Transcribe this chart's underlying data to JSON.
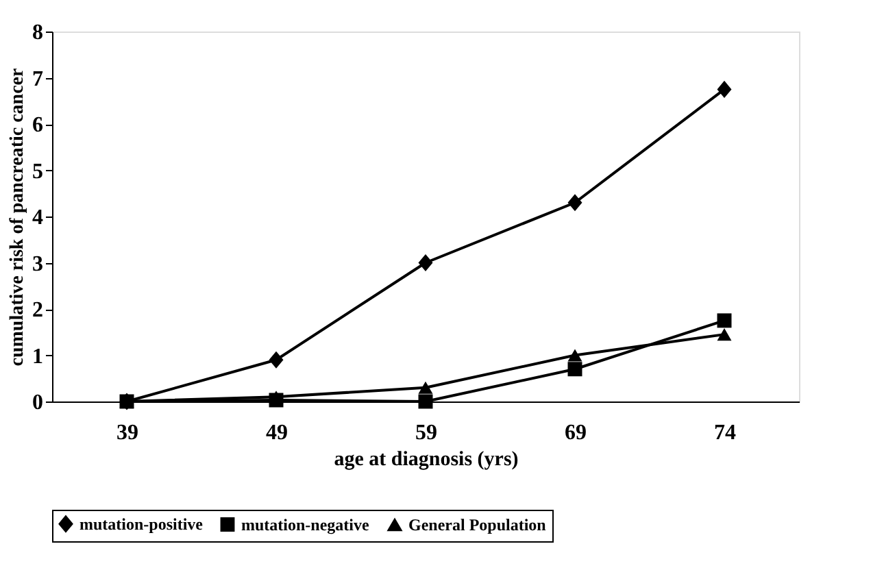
{
  "chart_data": {
    "type": "line",
    "xlabel": "age at diagnosis (yrs)",
    "ylabel": "cumulative risk of pancreatic cancer",
    "categories": [
      "39",
      "49",
      "59",
      "69",
      "74"
    ],
    "ylim": [
      0,
      8
    ],
    "yticks": [
      0,
      1,
      2,
      3,
      4,
      5,
      6,
      7,
      8
    ],
    "grid": false,
    "legend": "bottom",
    "line_style": "solid",
    "series": [
      {
        "name": "mutation-positive",
        "color": "#000000",
        "marker": "diamond",
        "values": [
          0,
          0.9,
          3.0,
          4.3,
          6.75
        ]
      },
      {
        "name": "mutation-negative",
        "color": "#000000",
        "marker": "square",
        "values": [
          0,
          0.03,
          0,
          0.7,
          1.75
        ]
      },
      {
        "name": "General Population",
        "color": "#000000",
        "marker": "triangle",
        "values": [
          0,
          0.1,
          0.3,
          1.0,
          1.45
        ]
      }
    ]
  }
}
